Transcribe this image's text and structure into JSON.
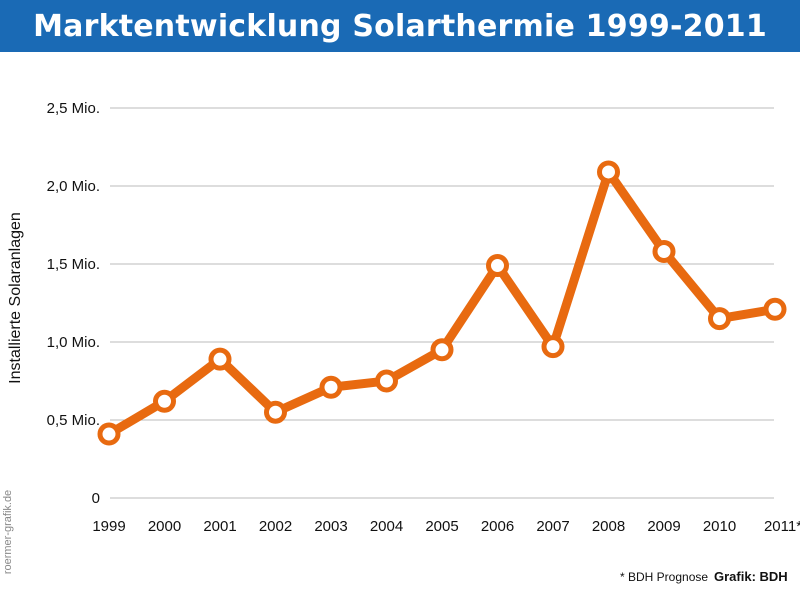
{
  "header": {
    "title": "Marktentwicklung Solarthermie 1999-2011"
  },
  "footer": {
    "footnote": "* BDH Prognose",
    "source": "Grafik: BDH",
    "watermark": "roermer-grafik.de"
  },
  "chart_data": {
    "type": "line",
    "title": "Marktentwicklung Solarthermie 1999-2011",
    "xlabel": "",
    "ylabel": "Installierte Solaranlagen",
    "categories": [
      "1999",
      "2000",
      "2001",
      "2002",
      "2003",
      "2004",
      "2005",
      "2006",
      "2007",
      "2008",
      "2009",
      "2010",
      "2011*"
    ],
    "series": [
      {
        "values": [
          0.41,
          0.62,
          0.89,
          0.55,
          0.71,
          0.75,
          0.95,
          1.49,
          0.97,
          2.09,
          1.58,
          1.15,
          1.21
        ]
      }
    ],
    "ylim": [
      0,
      2.5
    ],
    "yticks": [
      {
        "value": 0,
        "label": "0"
      },
      {
        "value": 0.5,
        "label": "0,5 Mio."
      },
      {
        "value": 1.0,
        "label": "1,0 Mio."
      },
      {
        "value": 1.5,
        "label": "1,5 Mio."
      },
      {
        "value": 2.0,
        "label": "2,0 Mio."
      },
      {
        "value": 2.5,
        "label": "2,5 Mio."
      }
    ],
    "grid": true,
    "colors": {
      "line": "#e86a10",
      "marker_fill": "#ffffff",
      "grid": "#bbbbbb",
      "header": "#1a6ab5"
    }
  }
}
